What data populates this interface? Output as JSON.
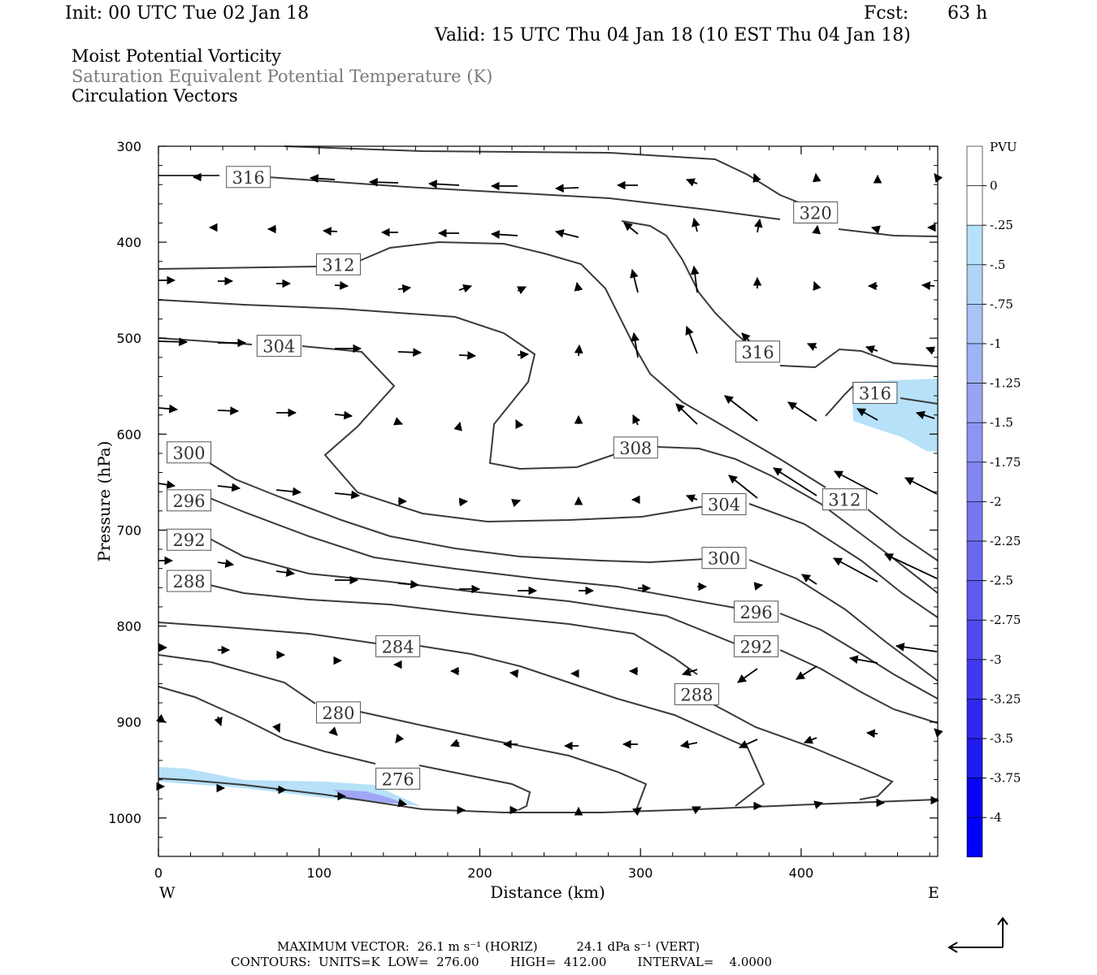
{
  "header": {
    "init": "Init: 00 UTC Tue 02 Jan 18",
    "fcst_label": "Fcst:",
    "fcst_value": "63 h",
    "valid": "Valid: 15 UTC Thu 04 Jan 18 (10 EST Thu 04 Jan 18)"
  },
  "fields": {
    "line1": "Moist Potential Vorticity",
    "line2": "Saturation Equivalent Potential Temperature (K)",
    "line3": "Circulation Vectors"
  },
  "colors": {
    "contour": "#3a3a3a",
    "pv_light": "#b6e1f8",
    "pv_mid": "#a0a6f5",
    "axis": "#000000"
  },
  "chart_data": {
    "type": "cross-section",
    "xlabel": "Distance (km)",
    "ylabel": "Pressure (hPa)",
    "xlim": [
      0,
      485
    ],
    "ylim": [
      300,
      1040
    ],
    "x_ticks": [
      0,
      100,
      200,
      300,
      400
    ],
    "y_ticks": [
      300,
      400,
      500,
      600,
      700,
      800,
      900,
      1000
    ],
    "x_end_labels": {
      "left": "W",
      "right": "E"
    },
    "contour_labels": [
      {
        "value": "316",
        "x": 56,
        "p": 332
      },
      {
        "value": "320",
        "x": 409,
        "p": 369
      },
      {
        "value": "312",
        "x": 112,
        "p": 423
      },
      {
        "value": "304",
        "x": 75,
        "p": 508
      },
      {
        "value": "316",
        "x": 373,
        "p": 514
      },
      {
        "value": "316",
        "x": 446,
        "p": 557
      },
      {
        "value": "308",
        "x": 297,
        "p": 614
      },
      {
        "value": "300",
        "x": 19,
        "p": 619
      },
      {
        "value": "312",
        "x": 427,
        "p": 668
      },
      {
        "value": "296",
        "x": 19,
        "p": 669
      },
      {
        "value": "304",
        "x": 352,
        "p": 673
      },
      {
        "value": "292",
        "x": 19,
        "p": 710
      },
      {
        "value": "300",
        "x": 352,
        "p": 729
      },
      {
        "value": "288",
        "x": 19,
        "p": 753
      },
      {
        "value": "296",
        "x": 372,
        "p": 785
      },
      {
        "value": "284",
        "x": 149,
        "p": 821
      },
      {
        "value": "292",
        "x": 372,
        "p": 821
      },
      {
        "value": "288",
        "x": 335,
        "p": 871
      },
      {
        "value": "280",
        "x": 112,
        "p": 890
      },
      {
        "value": "276",
        "x": 149,
        "p": 959
      }
    ],
    "colorbar": {
      "title": "PVU",
      "levels": [
        "0",
        "-.25",
        "-.5",
        "-.75",
        "-1",
        "-1.25",
        "-1.5",
        "-1.75",
        "-2",
        "-2.25",
        "-2.5",
        "-2.75",
        "-3",
        "-3.25",
        "-3.5",
        "-3.75",
        "-4"
      ]
    }
  },
  "footer": {
    "line1": "MAXIMUM VECTOR:  26.1 m s⁻¹ (HORIZ)          24.1 dPa s⁻¹ (VERT)",
    "line2": "CONTOURS:  UNITS=K  LOW=  276.00        HIGH=  412.00        INTERVAL=    4.0000"
  }
}
